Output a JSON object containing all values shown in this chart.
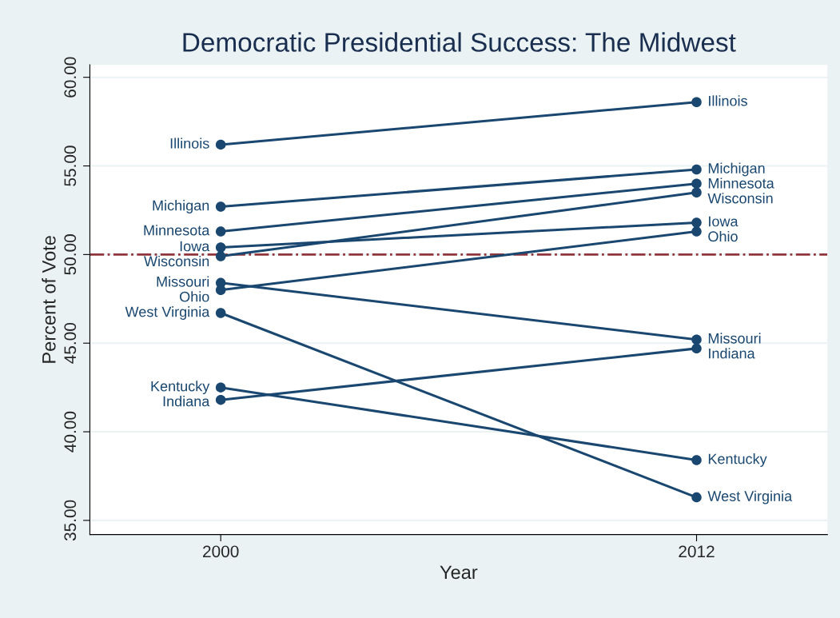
{
  "chart_data": {
    "type": "line",
    "title": "Democratic Presidential Success: The Midwest",
    "xlabel": "Year",
    "ylabel": "Percent of Vote",
    "x": [
      2000,
      2012
    ],
    "xlim": [
      1996.7,
      2015.3
    ],
    "xticks": [
      2000,
      2012
    ],
    "ylim": [
      34.2,
      60.7
    ],
    "yticks": [
      {
        "value": 35,
        "label": "35.00"
      },
      {
        "value": 40,
        "label": "40.00"
      },
      {
        "value": 45,
        "label": "45.00"
      },
      {
        "value": 50,
        "label": "50.00"
      },
      {
        "value": 55,
        "label": "55.00"
      },
      {
        "value": 60,
        "label": "60.00"
      }
    ],
    "grid": "y",
    "legend": false,
    "marker": "circle",
    "line_style": "solid",
    "ref_lines": [
      {
        "axis": "y",
        "value": 50,
        "color": "#90353b",
        "line_style": "dashdot"
      }
    ],
    "series": [
      {
        "name": "Illinois",
        "color": "#1a476f",
        "values": [
          56.2,
          58.6
        ]
      },
      {
        "name": "Michigan",
        "color": "#1a476f",
        "values": [
          52.7,
          54.8
        ]
      },
      {
        "name": "Minnesota",
        "color": "#1a476f",
        "values": [
          51.3,
          54.0
        ]
      },
      {
        "name": "Iowa",
        "color": "#1a476f",
        "values": [
          50.4,
          51.8
        ]
      },
      {
        "name": "Wisconsin",
        "color": "#1a476f",
        "values": [
          49.9,
          53.5
        ]
      },
      {
        "name": "Missouri",
        "color": "#1a476f",
        "values": [
          48.4,
          45.2
        ]
      },
      {
        "name": "Ohio",
        "color": "#1a476f",
        "values": [
          48.0,
          51.3
        ]
      },
      {
        "name": "West Virginia",
        "color": "#1a476f",
        "values": [
          46.7,
          36.3
        ]
      },
      {
        "name": "Kentucky",
        "color": "#1a476f",
        "values": [
          42.5,
          38.4
        ]
      },
      {
        "name": "Indiana",
        "color": "#1a476f",
        "values": [
          41.8,
          44.7
        ]
      }
    ]
  }
}
